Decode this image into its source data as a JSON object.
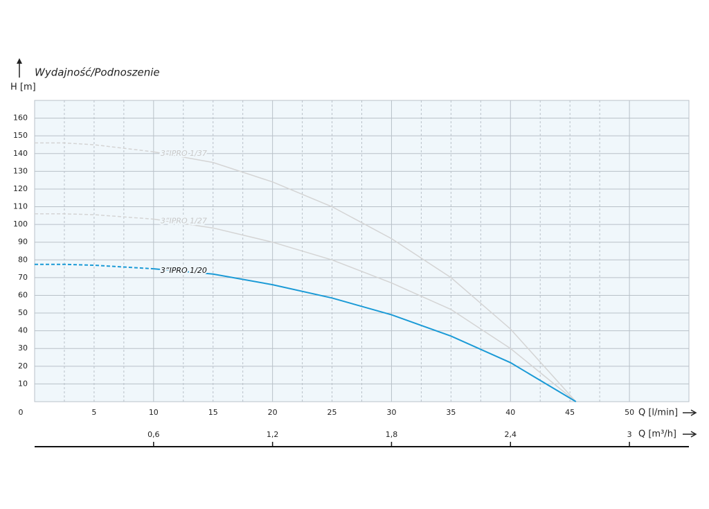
{
  "chart_data": {
    "type": "line",
    "title": "Wydajność/Podnoszenie",
    "y_label": "H [m]",
    "x_label": "Q [l/min]",
    "x2_label": "Q [m³/h]",
    "xlim": [
      0,
      55
    ],
    "xticks": [
      0,
      5,
      10,
      15,
      20,
      25,
      30,
      35,
      40,
      45,
      50
    ],
    "x2lim": [
      0,
      3.3
    ],
    "x2ticks": [
      {
        "value": 0.6,
        "label": "0,6"
      },
      {
        "value": 1.2,
        "label": "1,2"
      },
      {
        "value": 1.8,
        "label": "1,8"
      },
      {
        "value": 2.4,
        "label": "2,4"
      },
      {
        "value": 3,
        "label": "3"
      }
    ],
    "ylim": [
      0,
      170
    ],
    "yticks": [
      10,
      20,
      30,
      40,
      50,
      60,
      70,
      80,
      90,
      100,
      110,
      120,
      130,
      140,
      150,
      160
    ],
    "grid": true,
    "x": [
      0,
      2.5,
      5,
      10,
      15,
      20,
      25,
      30,
      35,
      40,
      45.5
    ],
    "series": [
      {
        "name": "3”IPRO 1/37",
        "color": "#d4d4d4",
        "dash_below_x": 10,
        "values": [
          146,
          146,
          145,
          141,
          135,
          124,
          110,
          92,
          70,
          41,
          0
        ]
      },
      {
        "name": "3”IPRO 1/27",
        "color": "#d4d4d4",
        "dash_below_x": 10,
        "values": [
          106,
          106,
          105.5,
          103,
          98,
          90,
          80,
          67,
          52,
          30,
          0
        ]
      },
      {
        "name": "3”IPRO 1/20",
        "color": "#1a9ad6",
        "dash_below_x": 10,
        "values": [
          77.5,
          77.5,
          77,
          75,
          72,
          66,
          58.5,
          49,
          37,
          22,
          0
        ]
      }
    ]
  }
}
